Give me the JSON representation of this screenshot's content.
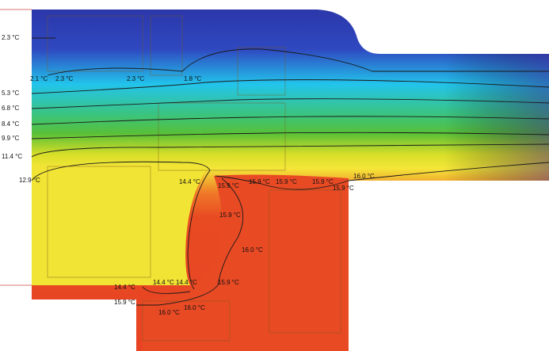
{
  "labels": [
    "2.3 °C",
    "5.3 °C",
    "6.8 °C",
    "8.4 °C",
    "9.9 °C",
    "11.4 °C",
    "12.9 °C",
    "2.1 °C",
    "2.3 °C",
    "2.3 °C",
    "1.8 °C",
    "14.4 °C",
    "15.9 °C",
    "15.9 °C",
    "15.9 °C",
    "15.9 °C",
    "16.0 °C",
    "15.9 °C",
    "15.9 °C",
    "16.0 °C",
    "15.9 °C",
    "14.4 °C",
    "14.4 °C",
    "14.4 °C",
    "15.9 °C",
    "16.0 °C",
    "16.0 °C"
  ]
}
